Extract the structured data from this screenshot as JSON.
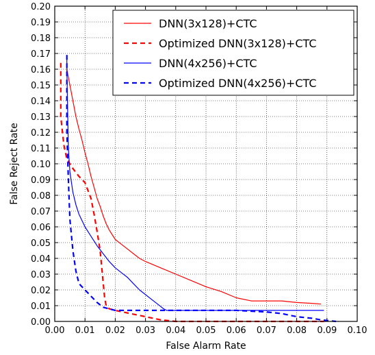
{
  "chart_data": {
    "type": "line",
    "title": "",
    "xlabel": "False Alarm Rate",
    "ylabel": "False Reject Rate",
    "xlim": [
      0.0,
      0.1
    ],
    "ylim": [
      0.0,
      0.2
    ],
    "x_ticks": [
      "0.00",
      "0.01",
      "0.02",
      "0.03",
      "0.04",
      "0.05",
      "0.06",
      "0.07",
      "0.08",
      "0.09",
      "0.10"
    ],
    "y_ticks": [
      "0.00",
      "0.01",
      "0.02",
      "0.03",
      "0.04",
      "0.05",
      "0.06",
      "0.07",
      "0.08",
      "0.09",
      "0.10",
      "0.11",
      "0.12",
      "0.13",
      "0.14",
      "0.15",
      "0.16",
      "0.17",
      "0.18",
      "0.19",
      "0.20"
    ],
    "grid": true,
    "legend_position": "top-right",
    "series": [
      {
        "name": "DNN(3x128)+CTC",
        "color": "#ff0000",
        "dash": "solid",
        "x": [
          0.004,
          0.005,
          0.006,
          0.007,
          0.008,
          0.009,
          0.01,
          0.011,
          0.012,
          0.013,
          0.014,
          0.015,
          0.016,
          0.017,
          0.018,
          0.019,
          0.02,
          0.022,
          0.024,
          0.026,
          0.028,
          0.03,
          0.035,
          0.04,
          0.045,
          0.05,
          0.055,
          0.06,
          0.065,
          0.07,
          0.075,
          0.08,
          0.085,
          0.088
        ],
        "y": [
          0.16,
          0.15,
          0.14,
          0.13,
          0.122,
          0.115,
          0.107,
          0.1,
          0.092,
          0.085,
          0.078,
          0.073,
          0.067,
          0.062,
          0.058,
          0.055,
          0.052,
          0.049,
          0.046,
          0.043,
          0.04,
          0.038,
          0.034,
          0.03,
          0.026,
          0.022,
          0.019,
          0.015,
          0.013,
          0.013,
          0.013,
          0.012,
          0.0115,
          0.011
        ]
      },
      {
        "name": "Optimized DNN(3x128)+CTC",
        "color": "#ff0000",
        "dash": "dashed",
        "x": [
          0.002,
          0.002,
          0.003,
          0.004,
          0.006,
          0.008,
          0.01,
          0.012,
          0.013,
          0.014,
          0.015,
          0.0155,
          0.016,
          0.0165,
          0.017,
          0.018,
          0.02,
          0.025,
          0.03,
          0.035,
          0.04,
          0.05,
          0.06,
          0.07,
          0.08,
          0.089
        ],
        "y": [
          0.164,
          0.13,
          0.112,
          0.103,
          0.097,
          0.092,
          0.088,
          0.078,
          0.068,
          0.057,
          0.045,
          0.035,
          0.025,
          0.015,
          0.01,
          0.008,
          0.007,
          0.005,
          0.003,
          0.001,
          0.0,
          0.0,
          0.0,
          0.0,
          0.0,
          0.0
        ]
      },
      {
        "name": "DNN(4x256)+CTC",
        "color": "#0000ff",
        "dash": "solid",
        "x": [
          0.004,
          0.004,
          0.0045,
          0.005,
          0.006,
          0.007,
          0.008,
          0.01,
          0.012,
          0.014,
          0.016,
          0.018,
          0.02,
          0.022,
          0.024,
          0.026,
          0.028,
          0.03,
          0.032,
          0.034,
          0.036,
          0.037,
          0.04,
          0.05,
          0.06,
          0.07,
          0.08,
          0.089
        ],
        "y": [
          0.169,
          0.16,
          0.11,
          0.095,
          0.082,
          0.074,
          0.068,
          0.06,
          0.054,
          0.048,
          0.043,
          0.038,
          0.034,
          0.031,
          0.028,
          0.024,
          0.02,
          0.017,
          0.014,
          0.011,
          0.008,
          0.007,
          0.007,
          0.007,
          0.007,
          0.007,
          0.007,
          0.007
        ]
      },
      {
        "name": "Optimized DNN(4x256)+CTC",
        "color": "#0000ff",
        "dash": "dashed",
        "x": [
          0.004,
          0.004,
          0.0045,
          0.005,
          0.006,
          0.007,
          0.008,
          0.01,
          0.012,
          0.014,
          0.016,
          0.018,
          0.02,
          0.03,
          0.04,
          0.05,
          0.06,
          0.07,
          0.075,
          0.08,
          0.085,
          0.088,
          0.093
        ],
        "y": [
          0.169,
          0.12,
          0.09,
          0.065,
          0.045,
          0.032,
          0.024,
          0.02,
          0.016,
          0.012,
          0.009,
          0.008,
          0.007,
          0.007,
          0.007,
          0.007,
          0.007,
          0.006,
          0.005,
          0.003,
          0.002,
          0.001,
          0.0
        ]
      }
    ]
  }
}
